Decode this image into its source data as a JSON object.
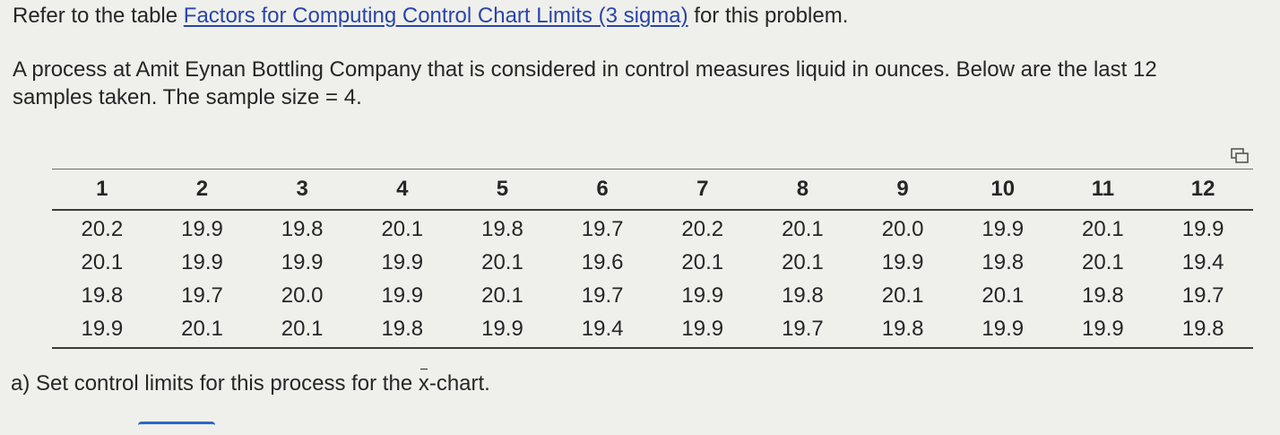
{
  "intro": {
    "prefix": "Refer to the table ",
    "link_text": "Factors for Computing Control Chart Limits (3 sigma)",
    "suffix": " for this problem."
  },
  "problem": {
    "line1": "A process at Amit Eynan Bottling Company that is considered in control measures liquid in ounces. Below are the last 12",
    "line2": "samples taken. The sample size = 4."
  },
  "table": {
    "headers": [
      "1",
      "2",
      "3",
      "4",
      "5",
      "6",
      "7",
      "8",
      "9",
      "10",
      "11",
      "12"
    ],
    "rows": [
      [
        "20.2",
        "19.9",
        "19.8",
        "20.1",
        "19.8",
        "19.7",
        "20.2",
        "20.1",
        "20.0",
        "19.9",
        "20.1",
        "19.9"
      ],
      [
        "20.1",
        "19.9",
        "19.9",
        "19.9",
        "20.1",
        "19.6",
        "20.1",
        "20.1",
        "19.9",
        "19.8",
        "20.1",
        "19.4"
      ],
      [
        "19.8",
        "19.7",
        "20.0",
        "19.9",
        "20.1",
        "19.7",
        "19.9",
        "19.8",
        "20.1",
        "20.1",
        "19.8",
        "19.7"
      ],
      [
        "19.9",
        "20.1",
        "20.1",
        "19.8",
        "19.9",
        "19.4",
        "19.9",
        "19.7",
        "19.8",
        "19.9",
        "19.9",
        "19.8"
      ]
    ]
  },
  "question": {
    "prefix": "a) Set control limits for this process for the ",
    "xbar": "x",
    "suffix": "-chart."
  },
  "icons": {
    "copy": "copy-icon"
  },
  "colors": {
    "link": "#2945a8",
    "accent": "#2e66c4",
    "background": "#efefec"
  }
}
